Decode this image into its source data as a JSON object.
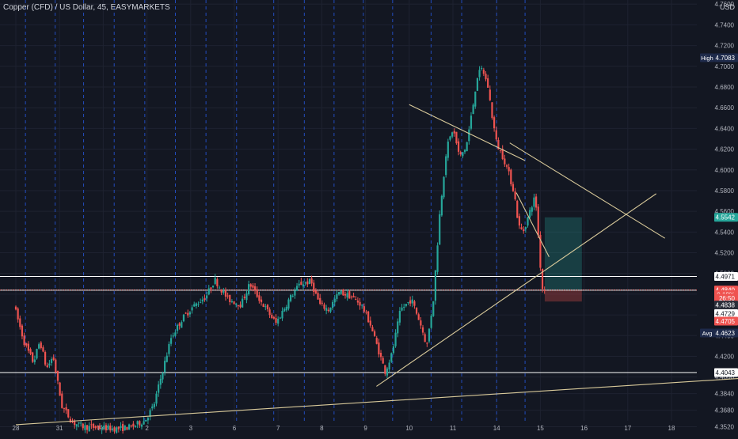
{
  "header": {
    "symbol_title": "Copper (CFD) / US Dollar, 45, EASYMARKETS",
    "currency": "USD"
  },
  "colors": {
    "background": "#131722",
    "grid": "#1e2230",
    "session_line": "#2962ff",
    "up_candle": "#26a69a",
    "down_candle": "#ef5350",
    "trendline": "#d8c99a",
    "level_line": "#ffffff",
    "axis_text": "#b2b5be",
    "tag_dark": "#1e2a4a",
    "tag_green": "#26a69a",
    "tag_red": "#ef5350",
    "tag_white": "#ffffff"
  },
  "chart_data": {
    "type": "candlestick",
    "timeframe": "45",
    "ylim": [
      4.344,
      4.764
    ],
    "y_ticks": [
      "4.3520",
      "4.3680",
      "4.3840",
      "4.4000",
      "4.4200",
      "4.4400",
      "4.4600",
      "4.4800",
      "4.5000",
      "4.5200",
      "4.5400",
      "4.5600",
      "4.5800",
      "4.6000",
      "4.6200",
      "4.6400",
      "4.6600",
      "4.6800",
      "4.7000",
      "4.7200",
      "4.7400",
      "4.7600"
    ],
    "x_ticks": [
      "28",
      "31",
      "Feb",
      "2",
      "3",
      "6",
      "7",
      "8",
      "9",
      "10",
      "11",
      "14",
      "15",
      "16",
      "17",
      "18"
    ],
    "price_path": [
      [
        0,
        4.47
      ],
      [
        0.25,
        4.432
      ],
      [
        0.45,
        4.414
      ],
      [
        0.6,
        4.435
      ],
      [
        0.75,
        4.408
      ],
      [
        0.9,
        4.42
      ],
      [
        1.1,
        4.372
      ],
      [
        1.35,
        4.356
      ],
      [
        1.6,
        4.352
      ],
      [
        2.0,
        4.351
      ],
      [
        2.4,
        4.35
      ],
      [
        2.7,
        4.352
      ],
      [
        3.0,
        4.358
      ],
      [
        3.2,
        4.372
      ],
      [
        3.4,
        4.405
      ],
      [
        3.6,
        4.438
      ],
      [
        3.85,
        4.456
      ],
      [
        4.1,
        4.468
      ],
      [
        4.4,
        4.478
      ],
      [
        4.6,
        4.494
      ],
      [
        4.9,
        4.475
      ],
      [
        5.2,
        4.47
      ],
      [
        5.4,
        4.49
      ],
      [
        5.7,
        4.47
      ],
      [
        6.0,
        4.452
      ],
      [
        6.3,
        4.475
      ],
      [
        6.55,
        4.49
      ],
      [
        6.8,
        4.492
      ],
      [
        7.0,
        4.47
      ],
      [
        7.2,
        4.465
      ],
      [
        7.45,
        4.482
      ],
      [
        7.7,
        4.478
      ],
      [
        7.95,
        4.47
      ],
      [
        8.15,
        4.452
      ],
      [
        8.35,
        4.425
      ],
      [
        8.5,
        4.405
      ],
      [
        8.65,
        4.422
      ],
      [
        8.85,
        4.465
      ],
      [
        9.1,
        4.475
      ],
      [
        9.3,
        4.452
      ],
      [
        9.45,
        4.43
      ],
      [
        9.6,
        4.475
      ],
      [
        9.75,
        4.56
      ],
      [
        9.9,
        4.62
      ],
      [
        10.05,
        4.64
      ],
      [
        10.2,
        4.612
      ],
      [
        10.35,
        4.622
      ],
      [
        10.5,
        4.66
      ],
      [
        10.6,
        4.69
      ],
      [
        10.72,
        4.698
      ],
      [
        10.85,
        4.68
      ],
      [
        10.95,
        4.65
      ],
      [
        11.05,
        4.625
      ],
      [
        11.2,
        4.612
      ],
      [
        11.3,
        4.6
      ],
      [
        11.45,
        4.578
      ],
      [
        11.55,
        4.546
      ],
      [
        11.65,
        4.54
      ],
      [
        11.78,
        4.556
      ],
      [
        11.9,
        4.572
      ],
      [
        11.97,
        4.562
      ],
      [
        12.02,
        4.52
      ],
      [
        12.1,
        4.484
      ]
    ],
    "session_lines_x": [
      0.22,
      0.9,
      1.55,
      2.25,
      2.95,
      3.65,
      4.35,
      5.05,
      5.9,
      6.6,
      7.28,
      7.95,
      8.62,
      9.5,
      10.2,
      11.0,
      11.65
    ],
    "trendlines": [
      {
        "x1": 9.0,
        "y1": 4.663,
        "x2": 11.65,
        "y2": 4.609
      },
      {
        "x1": 11.3,
        "y1": 4.626,
        "x2": 14.85,
        "y2": 4.534
      },
      {
        "x1": 8.25,
        "y1": 4.391,
        "x2": 14.65,
        "y2": 4.577
      },
      {
        "x1": 11.45,
        "y1": 4.578,
        "x2": 12.2,
        "y2": 4.516
      },
      {
        "x1": 0.0,
        "y1": 4.354,
        "x2": 18.9,
        "y2": 4.405
      }
    ],
    "horizontal_levels": [
      4.4971,
      4.4838,
      4.4043
    ],
    "position_box": {
      "entry": 4.4838,
      "target": 4.5542,
      "stop": 4.4729,
      "x_start": 12.1,
      "x_end": 12.95
    },
    "price_labels": [
      {
        "label": "High",
        "value": "4.7083",
        "price": 4.7083,
        "style": "dark"
      },
      {
        "label": "",
        "value": "4.5542",
        "price": 4.5542,
        "style": "green"
      },
      {
        "label": "",
        "value": "4.4971",
        "price": 4.4971,
        "style": "white"
      },
      {
        "label": "",
        "value": "4.4840",
        "price": 4.484,
        "style": "red"
      },
      {
        "label": "",
        "value": "-0.18%",
        "price": 4.4795,
        "style": "red_small"
      },
      {
        "label": "",
        "value": "26:50",
        "price": 4.4762,
        "style": "red_small"
      },
      {
        "label": "",
        "value": "4.4838",
        "price": 4.4695,
        "style": "dark_small"
      },
      {
        "label": "",
        "value": "4.4729",
        "price": 4.4612,
        "style": "white"
      },
      {
        "label": "",
        "value": "4.4705",
        "price": 4.454,
        "style": "red"
      },
      {
        "label": "Avg",
        "value": "4.4623",
        "price": 4.4425,
        "style": "dark"
      },
      {
        "label": "",
        "value": "4.4043",
        "price": 4.4043,
        "style": "white"
      }
    ]
  }
}
